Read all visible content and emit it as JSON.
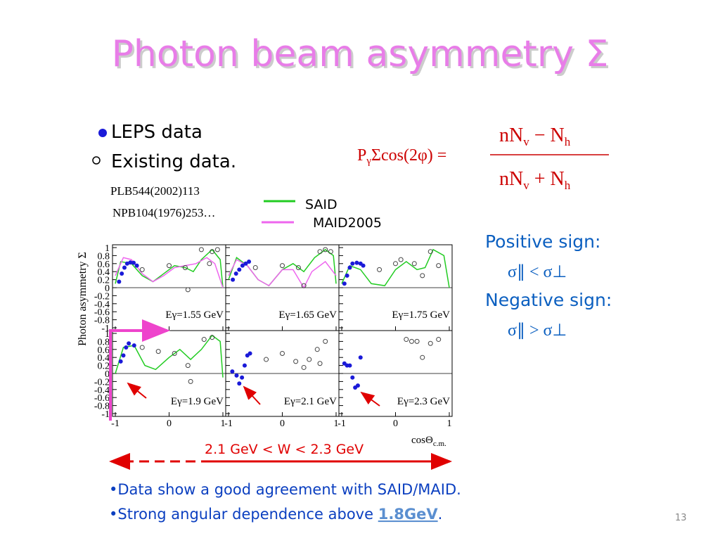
{
  "title": "Photon beam asymmetry Σ",
  "legend": {
    "leps": "LEPS data",
    "existing": "Existing data."
  },
  "references": [
    "PLB544(2002)113",
    "NPB104(1976)253…"
  ],
  "formula": {
    "lhs": [
      "P",
      "γ",
      "Σcos(2φ) ="
    ],
    "numerator": [
      "nN",
      "v",
      " − N",
      "h"
    ],
    "denominator": [
      "nN",
      "v",
      " + N",
      "h"
    ]
  },
  "signs": {
    "positive": "Positive sign:",
    "positive_relation": "σ∥ < σ⊥",
    "negative": "Negative sign:",
    "negative_relation": "σ∥ > σ⊥"
  },
  "range_label": "2.1 GeV < W < 2.3 GeV",
  "bullets": {
    "first": "•Data show a good agreement with SAID/MAID.",
    "second": [
      "•Strong angular dependence above ",
      "1.8GeV",
      "."
    ]
  },
  "page_number": "13",
  "chart_data": {
    "type": "scatter",
    "ylabel": "Photon asymmetry Σ",
    "xlabel": "cosΘ",
    "xlabel_sub": "c.m.",
    "xlim": [
      -1,
      1
    ],
    "ylim": [
      -1,
      1
    ],
    "xticks": [
      -1,
      0,
      1
    ],
    "yticks": [
      1,
      0.8,
      0.6,
      0.4,
      0.2,
      0,
      -0.2,
      -0.4,
      -0.6,
      -0.8,
      -1
    ],
    "series": [
      {
        "name": "SAID",
        "color": "#22cc22"
      },
      {
        "name": "MAID2005",
        "color": "#ee66ee"
      },
      {
        "name": "LEPS data",
        "color": "#1a1ad8"
      },
      {
        "name": "Existing data.",
        "color": "#444444"
      }
    ],
    "panels": [
      {
        "label": "Eγ=1.55 GeV",
        "series": [
          {
            "x": [
              -1,
              -0.9,
              -0.7,
              -0.5,
              -0.3,
              -0.1,
              0.1,
              0.3,
              0.45,
              0.6,
              0.8,
              0.95,
              1
            ],
            "y": [
              0.1,
              0.65,
              0.6,
              0.3,
              0.15,
              0.35,
              0.55,
              0.5,
              0.4,
              0.7,
              0.95,
              0.7,
              0
            ]
          },
          {
            "x": [
              -1,
              -0.85,
              -0.7,
              -0.5,
              -0.3,
              -0.1,
              0.1,
              0.3,
              0.5,
              0.7,
              0.85,
              1
            ],
            "y": [
              0.3,
              0.75,
              0.7,
              0.35,
              0.15,
              0.3,
              0.5,
              0.55,
              0.6,
              0.75,
              0.6,
              0
            ]
          },
          {
            "x": [
              -0.93,
              -0.88,
              -0.83,
              -0.78,
              -0.72,
              -0.66,
              -0.6
            ],
            "y": [
              0.15,
              0.35,
              0.5,
              0.6,
              0.63,
              0.62,
              0.55
            ]
          },
          {
            "x": [
              -0.5,
              0,
              0.3,
              0.35,
              0.6,
              0.75,
              0.8,
              0.9
            ],
            "y": [
              0.45,
              0.55,
              0.5,
              -0.05,
              0.95,
              0.6,
              0.9,
              0.95
            ]
          }
        ]
      },
      {
        "label": "Eγ=1.65 GeV",
        "series": [
          {
            "x": [
              -1,
              -0.85,
              -0.65,
              -0.45,
              -0.25,
              0,
              0.2,
              0.4,
              0.6,
              0.8,
              0.95,
              1
            ],
            "y": [
              0.2,
              0.75,
              0.55,
              0.2,
              0.05,
              0.45,
              0.6,
              0.4,
              0.75,
              0.95,
              0.8,
              0.1
            ]
          },
          {
            "x": [
              -1,
              -0.85,
              -0.65,
              -0.45,
              -0.25,
              0,
              0.2,
              0.4,
              0.55,
              0.8,
              1
            ],
            "y": [
              0.3,
              0.7,
              0.55,
              0.2,
              0.05,
              0.45,
              0.45,
              0,
              0.4,
              0.65,
              0.3
            ]
          },
          {
            "x": [
              -0.92,
              -0.86,
              -0.8,
              -0.74,
              -0.68,
              -0.62
            ],
            "y": [
              0.2,
              0.35,
              0.45,
              0.55,
              0.6,
              0.65
            ]
          },
          {
            "x": [
              -0.5,
              0,
              0.3,
              0.4,
              0.7,
              0.8,
              0.9
            ],
            "y": [
              0.5,
              0.55,
              0.5,
              0.05,
              0.9,
              0.95,
              0.9
            ]
          }
        ]
      },
      {
        "label": "Eγ=1.75 GeV",
        "series": [
          {
            "x": [
              -1,
              -0.85,
              -0.65,
              -0.45,
              -0.2,
              0,
              0.2,
              0.4,
              0.55,
              0.7,
              0.9,
              1
            ],
            "y": [
              0.1,
              0.55,
              0.45,
              0.1,
              0.05,
              0.45,
              0.65,
              0.45,
              0.5,
              0.95,
              0.8,
              0
            ]
          },
          {
            "x": [],
            "y": []
          },
          {
            "x": [
              -0.95,
              -0.9,
              -0.85,
              -0.8,
              -0.72,
              -0.65,
              -0.6
            ],
            "y": [
              0.1,
              0.3,
              0.5,
              0.6,
              0.62,
              0.6,
              0.55
            ]
          },
          {
            "x": [
              -0.3,
              0,
              0.1,
              0.35,
              0.5,
              0.65,
              0.8
            ],
            "y": [
              0.45,
              0.6,
              0.7,
              0.6,
              0.3,
              0.9,
              0.55
            ]
          }
        ]
      },
      {
        "label": "Eγ=1.9 GeV",
        "series": [
          {
            "x": [
              -1,
              -0.85,
              -0.65,
              -0.45,
              -0.25,
              0,
              0.2,
              0.4,
              0.6,
              0.8,
              0.95,
              1
            ],
            "y": [
              0,
              0.65,
              0.7,
              0.2,
              0.1,
              0.4,
              0.6,
              0.35,
              0.6,
              0.95,
              0.8,
              -0.1
            ]
          },
          {
            "x": [],
            "y": []
          },
          {
            "x": [
              -0.9,
              -0.85,
              -0.8,
              -0.75,
              -0.65
            ],
            "y": [
              0.3,
              0.45,
              0.65,
              0.75,
              0.7
            ]
          },
          {
            "x": [
              -0.5,
              -0.2,
              0.1,
              0.35,
              0.4,
              0.65,
              0.8
            ],
            "y": [
              0.65,
              0.55,
              0.5,
              0.2,
              -0.2,
              0.85,
              0.9
            ]
          }
        ]
      },
      {
        "label": "Eγ=2.1 GeV",
        "series": [
          {
            "x": [],
            "y": []
          },
          {
            "x": [],
            "y": []
          },
          {
            "x": [
              -0.93,
              -0.85,
              -0.8,
              -0.75,
              -0.7,
              -0.65,
              -0.6
            ],
            "y": [
              0.05,
              -0.05,
              -0.25,
              -0.1,
              0.2,
              0.45,
              0.5
            ]
          },
          {
            "x": [
              -0.3,
              0,
              0.25,
              0.4,
              0.5,
              0.65,
              0.7,
              0.8
            ],
            "y": [
              0.35,
              0.5,
              0.3,
              0.15,
              0.35,
              0.6,
              0.25,
              0.8
            ]
          }
        ]
      },
      {
        "label": "Eγ=2.3 GeV",
        "series": [
          {
            "x": [],
            "y": []
          },
          {
            "x": [],
            "y": []
          },
          {
            "x": [
              -0.95,
              -0.9,
              -0.85,
              -0.8,
              -0.75,
              -0.7,
              -0.65
            ],
            "y": [
              0.25,
              0.2,
              0.2,
              -0.1,
              -0.35,
              -0.3,
              0.4
            ]
          },
          {
            "x": [
              0.2,
              0.3,
              0.4,
              0.5,
              0.65,
              0.8
            ],
            "y": [
              0.85,
              0.8,
              0.8,
              0.4,
              0.75,
              0.85
            ]
          }
        ]
      }
    ]
  }
}
